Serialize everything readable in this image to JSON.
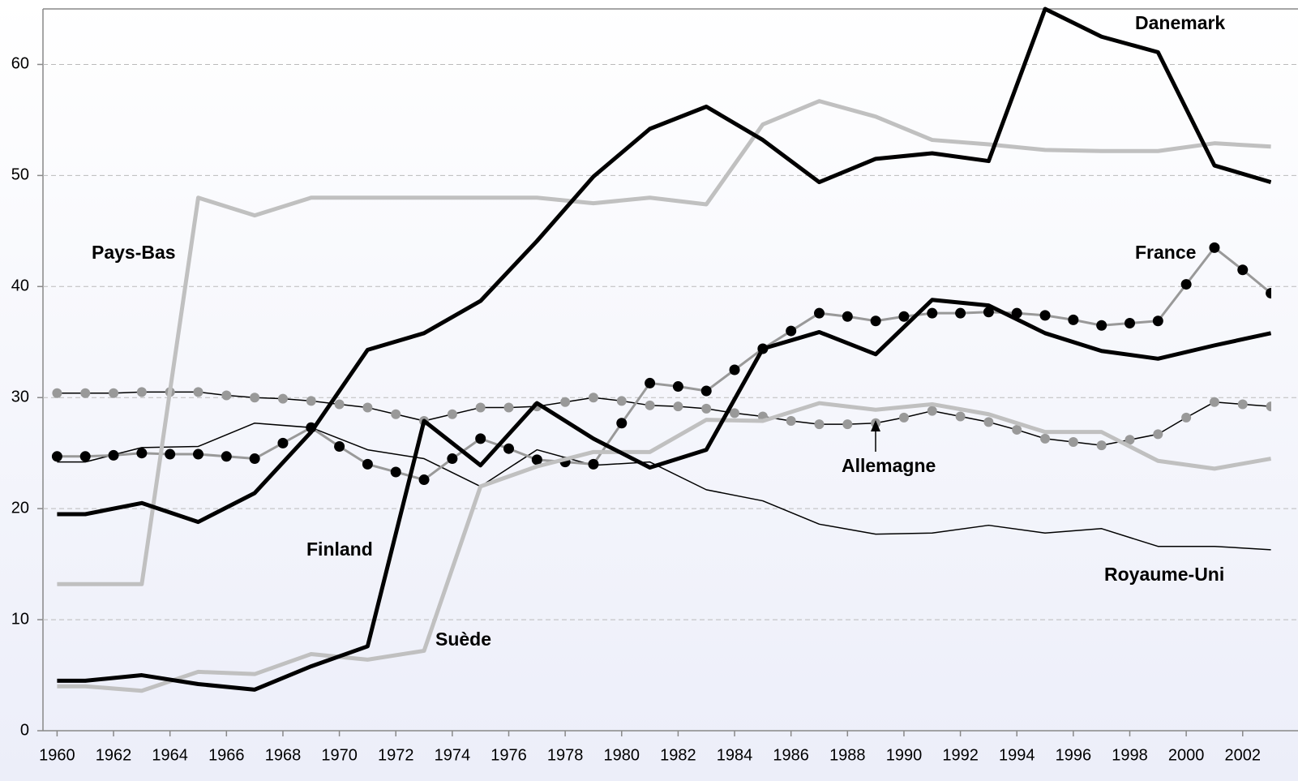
{
  "chart_data": {
    "type": "line",
    "x": [
      1960,
      1961,
      1962,
      1963,
      1964,
      1965,
      1966,
      1967,
      1968,
      1969,
      1970,
      1971,
      1972,
      1973,
      1974,
      1975,
      1976,
      1977,
      1978,
      1979,
      1980,
      1981,
      1982,
      1983,
      1984,
      1985,
      1986,
      1987,
      1988,
      1989,
      1990,
      1991,
      1992,
      1993,
      1994,
      1995,
      1996,
      1997,
      1998,
      1999,
      2000,
      2001,
      2002,
      2003
    ],
    "xlim": [
      1959.5,
      2003.5
    ],
    "xticks": [
      1960,
      1962,
      1964,
      1966,
      1968,
      1970,
      1972,
      1974,
      1976,
      1978,
      1980,
      1982,
      1984,
      1986,
      1988,
      1990,
      1992,
      1994,
      1996,
      1998,
      2000,
      2002
    ],
    "ylim": [
      0,
      65
    ],
    "yticks": [
      0,
      10,
      20,
      30,
      40,
      50,
      60
    ],
    "grid": true,
    "series": [
      {
        "name": "Royaume-Uni",
        "color": "#000000",
        "width": 1.5,
        "x": [
          1960,
          1961,
          1963,
          1965,
          1967,
          1969,
          1971,
          1973,
          1975,
          1977,
          1979,
          1981,
          1983,
          1985,
          1987,
          1989,
          1991,
          1993,
          1995,
          1997,
          1999,
          2001,
          2003
        ],
        "values": [
          24.2,
          24.2,
          25.5,
          25.6,
          27.7,
          27.3,
          25.3,
          24.5,
          22.0,
          25.3,
          23.9,
          24.2,
          21.7,
          20.7,
          18.6,
          17.7,
          17.8,
          18.5,
          17.8,
          18.2,
          16.6,
          16.6,
          16.3
        ]
      },
      {
        "name": "Allemagne",
        "color": "#000000",
        "width": 1.5,
        "marker_color": "#999999",
        "values": [
          30.4,
          30.4,
          30.4,
          30.5,
          30.5,
          30.5,
          30.2,
          30.0,
          29.9,
          29.7,
          29.4,
          29.1,
          28.5,
          27.9,
          28.5,
          29.1,
          29.1,
          29.2,
          29.6,
          30.0,
          29.7,
          29.3,
          29.2,
          29.0,
          28.6,
          28.3,
          27.9,
          27.6,
          27.6,
          27.7,
          28.2,
          28.8,
          28.3,
          27.8,
          27.1,
          26.3,
          26.0,
          25.7,
          26.2,
          26.7,
          28.2,
          29.6,
          29.4,
          29.2
        ]
      },
      {
        "name": "France",
        "color": "#999999",
        "width": 3,
        "marker_color": "#000000",
        "values": [
          24.7,
          24.7,
          24.8,
          25.0,
          24.9,
          24.9,
          24.7,
          24.5,
          25.9,
          27.3,
          25.6,
          24.0,
          23.3,
          22.6,
          24.5,
          26.3,
          25.4,
          24.4,
          24.2,
          24.0,
          27.7,
          31.3,
          31.0,
          30.6,
          32.5,
          34.4,
          36.0,
          37.6,
          37.3,
          36.9,
          37.3,
          37.6,
          37.6,
          37.7,
          37.6,
          37.4,
          37.0,
          36.5,
          36.7,
          36.9,
          40.2,
          43.5,
          41.5,
          39.4
        ]
      },
      {
        "name": "Pays-Bas",
        "color": "#c0c0c0",
        "width": 5,
        "x": [
          1960,
          1961,
          1963,
          1965,
          1967,
          1969,
          1971,
          1973,
          1975,
          1977,
          1979,
          1981,
          1983,
          1985,
          1987,
          1989,
          1991,
          1993,
          1995,
          1997,
          1999,
          2001,
          2003
        ],
        "values": [
          13.2,
          13.2,
          13.2,
          48.0,
          46.4,
          48.0,
          48.0,
          48.0,
          48.0,
          48.0,
          47.5,
          48.0,
          47.4,
          54.6,
          56.7,
          55.3,
          53.2,
          52.8,
          52.3,
          52.2,
          52.2,
          52.9,
          52.6
        ]
      },
      {
        "name": "Suède",
        "color": "#c0c0c0",
        "width": 5,
        "x": [
          1960,
          1961,
          1963,
          1965,
          1967,
          1969,
          1971,
          1973,
          1975,
          1977,
          1979,
          1981,
          1983,
          1985,
          1987,
          1989,
          1991,
          1993,
          1995,
          1997,
          1999,
          2001,
          2003
        ],
        "values": [
          4.0,
          4.0,
          3.6,
          5.3,
          5.1,
          6.9,
          6.4,
          7.2,
          22.0,
          23.8,
          25.1,
          25.1,
          28.0,
          27.9,
          29.5,
          28.9,
          29.4,
          28.5,
          26.9,
          26.9,
          24.3,
          23.6,
          24.5
        ]
      },
      {
        "name": "Finland",
        "color": "#000000",
        "width": 5,
        "x": [
          1960,
          1961,
          1963,
          1965,
          1967,
          1969,
          1971,
          1973,
          1975,
          1977,
          1979,
          1981,
          1983,
          1985,
          1987,
          1989,
          1991,
          1993,
          1995,
          1997,
          1999,
          2001,
          2003
        ],
        "values": [
          4.5,
          4.5,
          5.0,
          4.2,
          3.7,
          5.8,
          7.6,
          27.9,
          23.9,
          29.5,
          26.3,
          23.7,
          25.3,
          34.4,
          35.9,
          33.9,
          38.8,
          38.3,
          35.8,
          34.2,
          33.5,
          34.7,
          35.8
        ]
      },
      {
        "name": "Danemark",
        "color": "#000000",
        "width": 5,
        "x": [
          1960,
          1961,
          1963,
          1965,
          1967,
          1969,
          1971,
          1973,
          1975,
          1977,
          1979,
          1981,
          1983,
          1985,
          1987,
          1989,
          1991,
          1993,
          1995,
          1997,
          1999,
          2001,
          2003
        ],
        "values": [
          19.5,
          19.5,
          20.5,
          18.8,
          21.4,
          26.9,
          34.3,
          35.8,
          38.7,
          44.1,
          49.9,
          54.2,
          56.2,
          53.2,
          49.4,
          51.5,
          52.0,
          51.3,
          65.0,
          62.5,
          61.1,
          50.9,
          49.4
        ]
      }
    ]
  }
}
